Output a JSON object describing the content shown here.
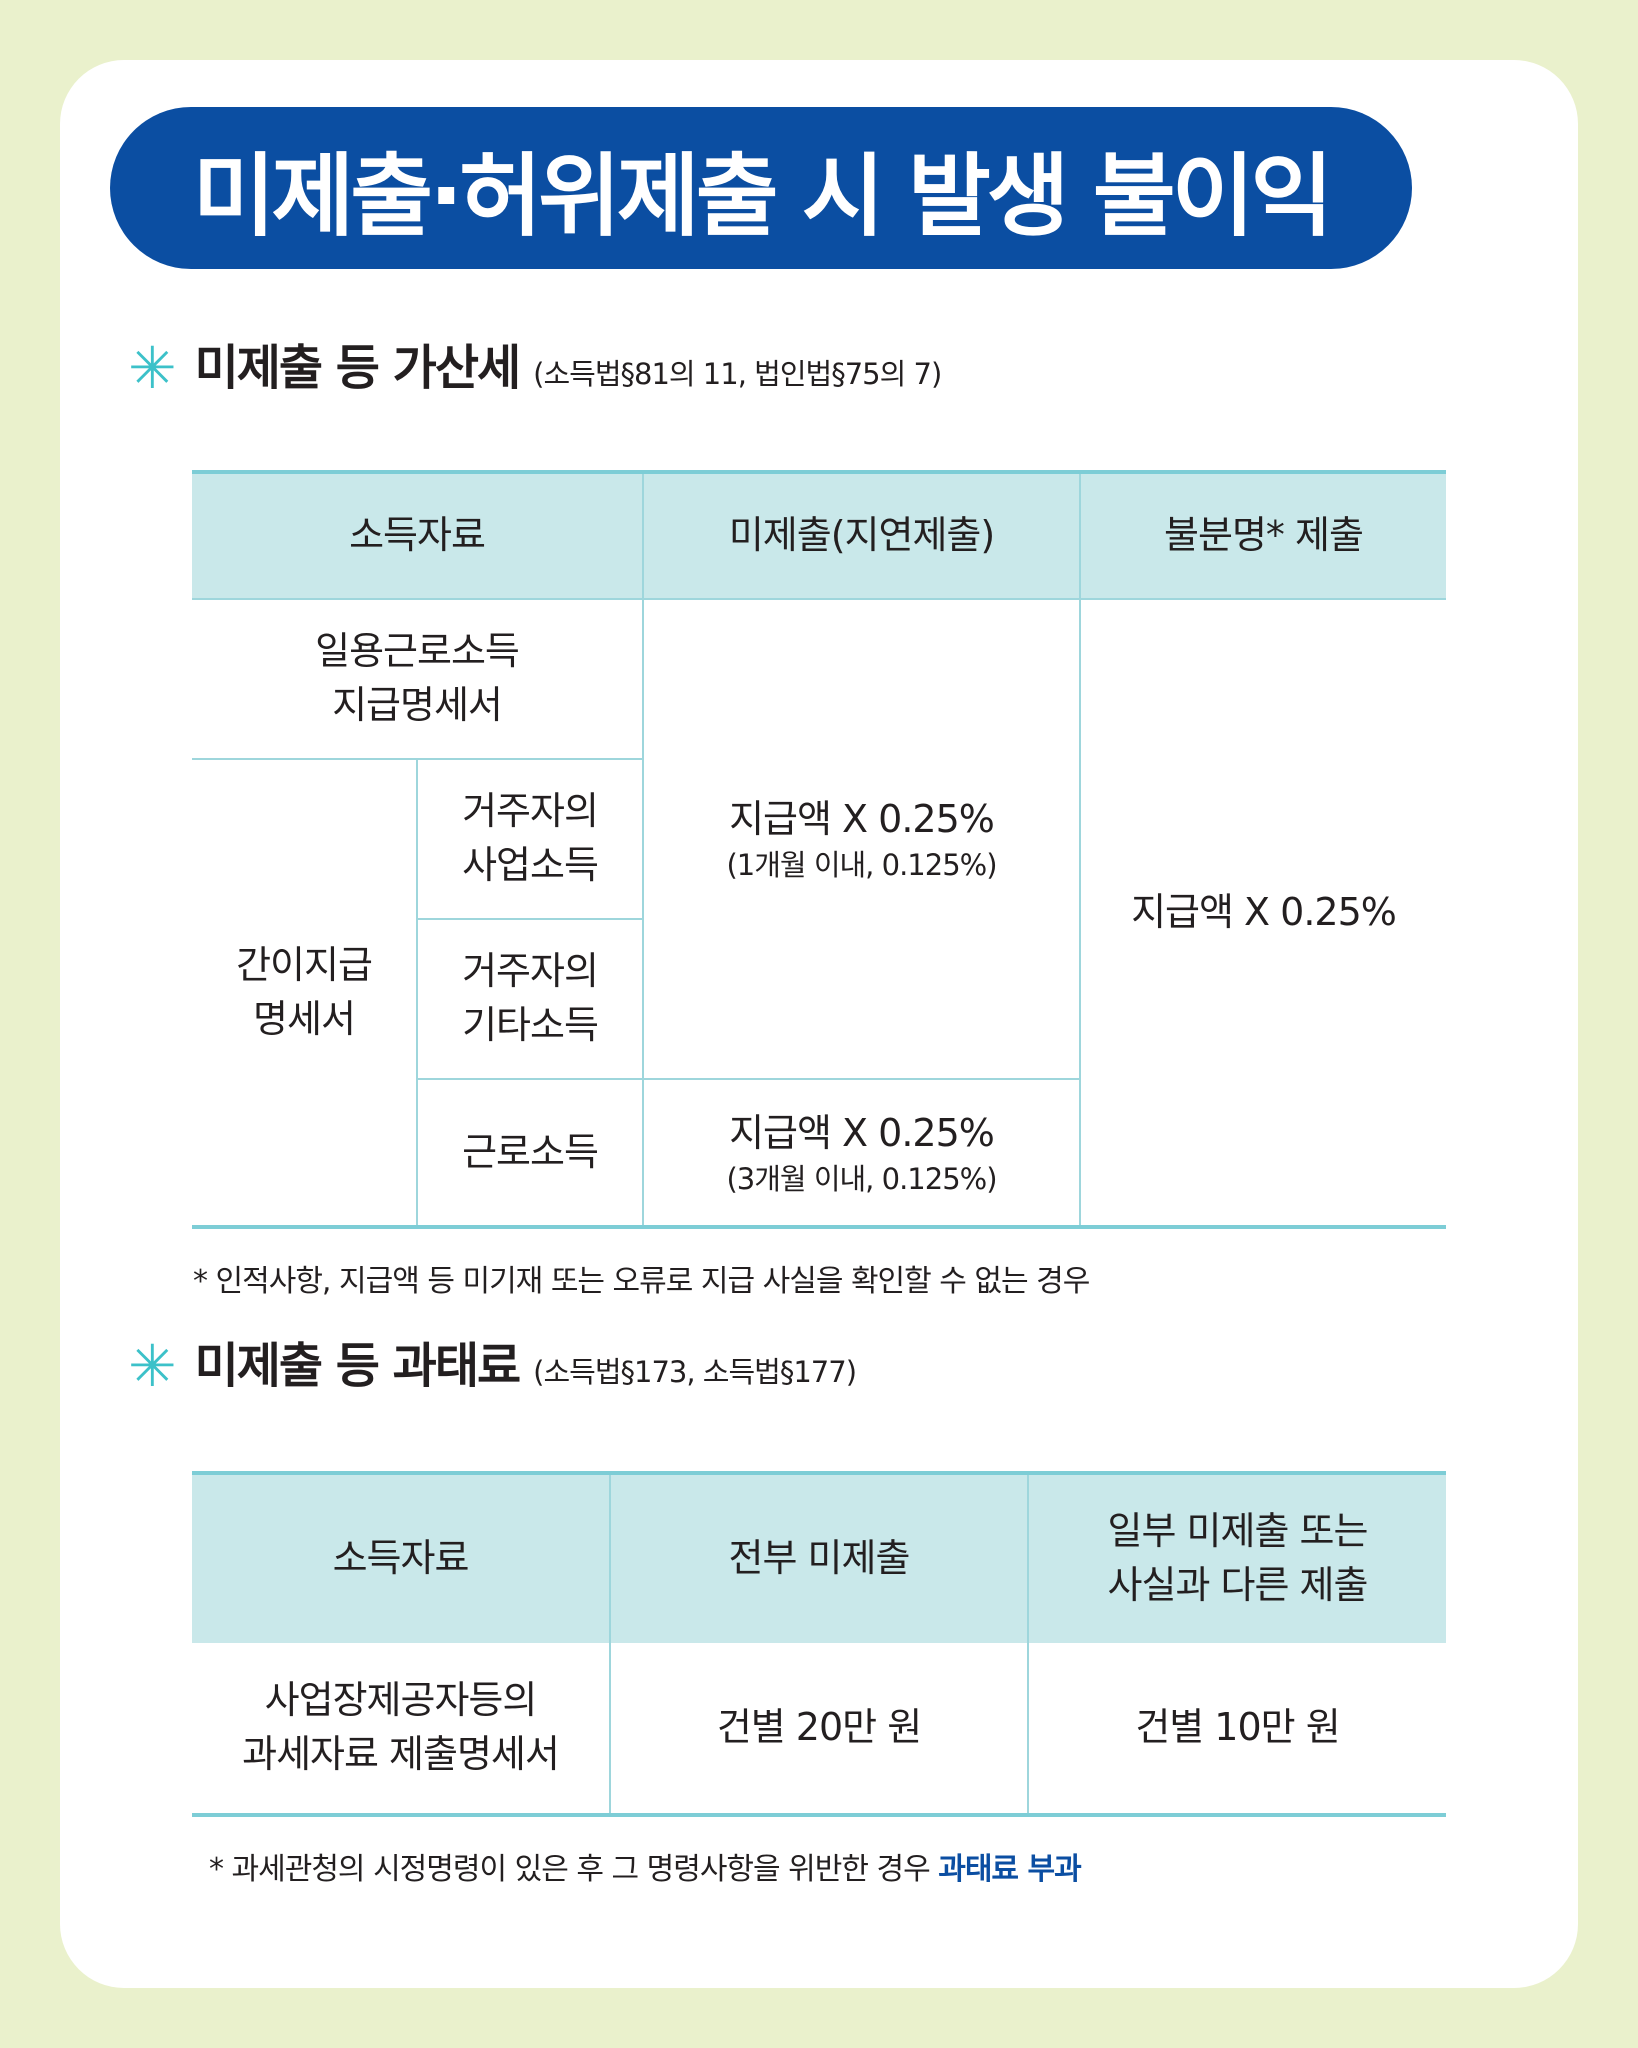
{
  "title": "미제출·허위제출 시 발생 불이익",
  "section1": {
    "star": "✳",
    "title": "미제출 등 가산세",
    "law": "(소득법§81의 11, 법인법§75의 7)",
    "headers": [
      "소득자료",
      "미제출(지연제출)",
      "불분명* 제출"
    ],
    "rows": {
      "r1_label_l1": "일용근로소득",
      "r1_label_l2": "지급명세서",
      "r2_group_l1": "간이지급",
      "r2_group_l2": "명세서",
      "sub1_l1": "거주자의",
      "sub1_l2": "사업소득",
      "sub2_l1": "거주자의",
      "sub2_l2": "기타소득",
      "sub3": "근로소득",
      "rate_a_main": "지급액 X 0.25%",
      "rate_a_note": "(1개월 이내, 0.125%)",
      "rate_b_main": "지급액 X 0.25%",
      "rate_b_note": "(3개월 이내, 0.125%)",
      "unclear_rate": "지급액 X 0.25%"
    },
    "footnote": "* 인적사항, 지급액 등 미기재 또는 오류로 지급 사실을 확인할 수 없는 경우"
  },
  "section2": {
    "star": "✳",
    "title": "미제출 등 과태료",
    "law": "(소득법§173, 소득법§177)",
    "headers": {
      "col1": "소득자료",
      "col2": "전부 미제출",
      "col3_l1": "일부 미제출 또는",
      "col3_l2": "사실과 다른 제출"
    },
    "row": {
      "label_l1": "사업장제공자등의",
      "label_l2": "과세자료 제출명세서",
      "all": "건별 20만 원",
      "partial": "건별 10만 원"
    },
    "footnote_prefix": "* 과세관청의 시정명령이 있은 후 그 명령사항을 위반한 경우 ",
    "footnote_highlight": "과태료 부과"
  },
  "colors": {
    "background": "#eaf1cc",
    "title_bg": "#0b4ea2",
    "header_bg": "#c9e8ea",
    "border": "#7dcdd6",
    "star": "#3cc1c9",
    "highlight": "#0b4ea2"
  }
}
